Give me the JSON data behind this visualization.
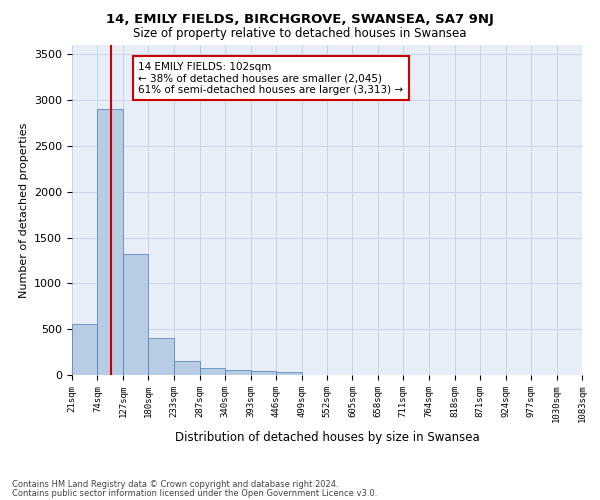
{
  "title1": "14, EMILY FIELDS, BIRCHGROVE, SWANSEA, SA7 9NJ",
  "title2": "Size of property relative to detached houses in Swansea",
  "xlabel": "Distribution of detached houses by size in Swansea",
  "ylabel": "Number of detached properties",
  "footnote1": "Contains HM Land Registry data © Crown copyright and database right 2024.",
  "footnote2": "Contains public sector information licensed under the Open Government Licence v3.0.",
  "annotation_line1": "14 EMILY FIELDS: 102sqm",
  "annotation_line2": "← 38% of detached houses are smaller (2,045)",
  "annotation_line3": "61% of semi-detached houses are larger (3,313) →",
  "property_sqm": 102,
  "bar_color": "#b8cce4",
  "bar_edge_color": "#4a7aba",
  "redline_color": "#cc0000",
  "grid_color": "#c8d4e8",
  "bg_color": "#e8eef8",
  "bin_edges": [
    21,
    74,
    127,
    180,
    233,
    287,
    340,
    393,
    446,
    499,
    552,
    605,
    658,
    711,
    764,
    818,
    871,
    924,
    977,
    1030,
    1083
  ],
  "bar_values": [
    560,
    2900,
    1325,
    400,
    150,
    80,
    55,
    45,
    35,
    0,
    0,
    0,
    0,
    0,
    0,
    0,
    0,
    0,
    0,
    0
  ],
  "ylim": [
    0,
    3600
  ],
  "yticks": [
    0,
    500,
    1000,
    1500,
    2000,
    2500,
    3000,
    3500
  ],
  "tick_labels": [
    "21sqm",
    "74sqm",
    "127sqm",
    "180sqm",
    "233sqm",
    "287sqm",
    "340sqm",
    "393sqm",
    "446sqm",
    "499sqm",
    "552sqm",
    "605sqm",
    "658sqm",
    "711sqm",
    "764sqm",
    "818sqm",
    "871sqm",
    "924sqm",
    "977sqm",
    "1030sqm",
    "1083sqm"
  ]
}
